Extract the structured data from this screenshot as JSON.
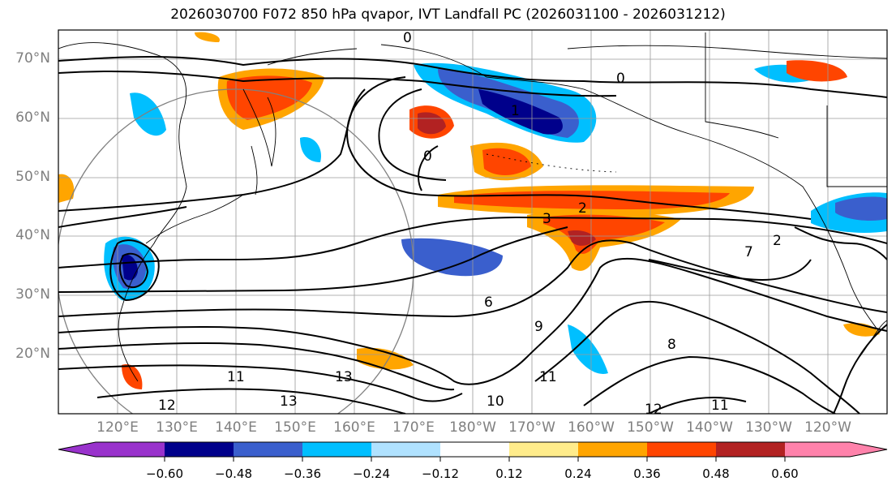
{
  "title": "2026030700 F072 850 hPa qvapor, IVT Landfall PC (2026031100 - 2026031212)",
  "lat_labels": [
    "70°N",
    "60°N",
    "50°N",
    "40°N",
    "30°N",
    "20°N"
  ],
  "lon_labels": [
    "120°E",
    "130°E",
    "140°E",
    "150°E",
    "160°E",
    "170°E",
    "180°W",
    "170°W",
    "160°W",
    "150°W",
    "140°W",
    "130°W",
    "120°W"
  ],
  "colorbar": {
    "ticks": [
      "−0.60",
      "−0.48",
      "−0.36",
      "−0.24",
      "−0.12",
      "0.12",
      "0.24",
      "0.36",
      "0.48",
      "0.60"
    ],
    "colors": [
      "#9932cc",
      "#00008b",
      "#3a5fcd",
      "#00bfff",
      "#b0e2ff",
      "#ffffff",
      "#ffec8b",
      "#ffa500",
      "#ff4500",
      "#b22222",
      "#ff82ab"
    ]
  },
  "contour_labels": [
    "0",
    "0",
    "0",
    "1",
    "2",
    "2",
    "3",
    "6",
    "7",
    "8",
    "9",
    "11",
    "11",
    "11",
    "12",
    "12",
    "13",
    "13",
    "10"
  ],
  "chart_data": {
    "type": "map",
    "title": "2026030700 F072 850 hPa qvapor, IVT Landfall PC (2026031100 - 2026031212)",
    "extent": {
      "lon_min": 110,
      "lon_max": 250,
      "lat_min": 10,
      "lat_max": 75
    },
    "colorbar_levels": [
      -0.6,
      -0.48,
      -0.36,
      -0.24,
      -0.12,
      0.12,
      0.24,
      0.36,
      0.48,
      0.6
    ]
  }
}
